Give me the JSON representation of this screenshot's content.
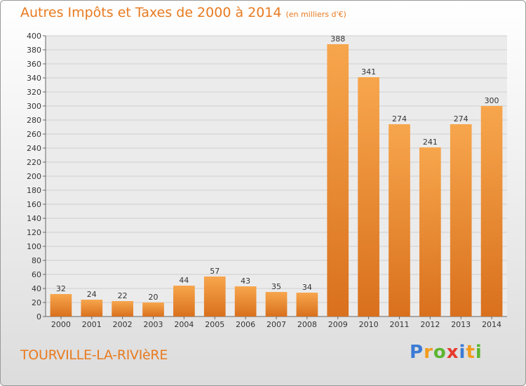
{
  "header": {
    "title": "Autres Impôts et Taxes de 2000 à 2014",
    "unit": "(en milliers d'€)"
  },
  "footer": {
    "place": "TOURVILLE-LA-RIVIèRE",
    "logo_letters": [
      {
        "ch": "P",
        "color": "#3a7bd5"
      },
      {
        "ch": "r",
        "color": "#f29b1d"
      },
      {
        "ch": "o",
        "color": "#5cb531"
      },
      {
        "ch": "x",
        "color": "#e63a2c"
      },
      {
        "ch": "i",
        "color": "#3a7bd5"
      },
      {
        "ch": "t",
        "color": "#f29b1d"
      },
      {
        "ch": "i",
        "color": "#5cb531"
      }
    ]
  },
  "chart_data": {
    "type": "bar",
    "title": "Autres Impôts et Taxes de 2000 à 2014",
    "subtitle": "(en milliers d'€)",
    "xlabel": "",
    "ylabel": "",
    "categories": [
      "2000",
      "2001",
      "2002",
      "2003",
      "2004",
      "2005",
      "2006",
      "2007",
      "2008",
      "2009",
      "2010",
      "2011",
      "2012",
      "2013",
      "2014"
    ],
    "values": [
      32,
      24,
      22,
      20,
      44,
      57,
      43,
      35,
      34,
      388,
      341,
      274,
      241,
      274,
      300
    ],
    "ylim": [
      0,
      400
    ],
    "yticks": [
      0,
      20,
      40,
      60,
      80,
      100,
      120,
      140,
      160,
      180,
      200,
      220,
      240,
      260,
      280,
      300,
      320,
      340,
      360,
      380,
      400
    ],
    "grid": true,
    "legend": "none",
    "colors": {
      "bar_light": "#f7a64d",
      "bar_dark": "#d9701d",
      "grid": "#cfcfcf",
      "axis": "#666666",
      "text": "#333333"
    }
  }
}
